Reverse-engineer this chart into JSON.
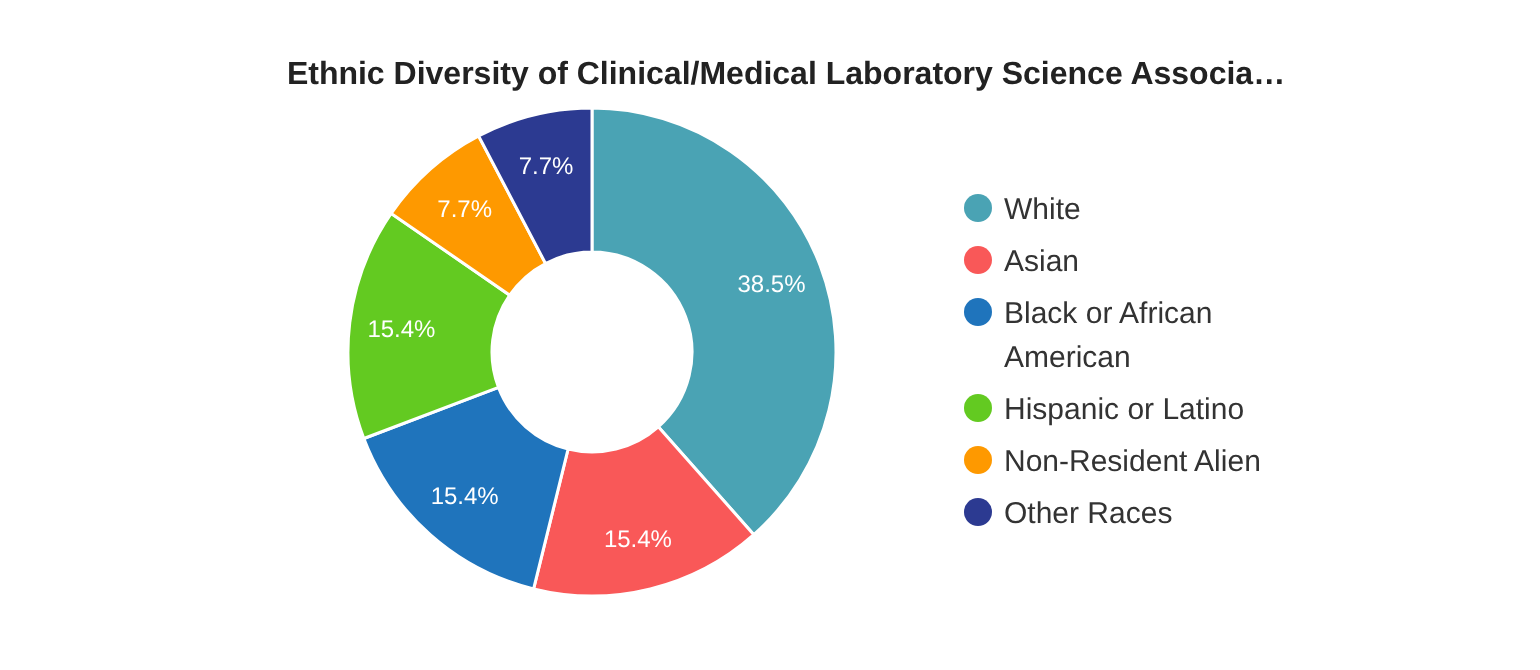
{
  "chart_data": {
    "type": "donut",
    "title": "Ethnic Diversity of Clinical/Medical Laboratory Science Associa…",
    "categories": [
      "White",
      "Asian",
      "Black or African American",
      "Hispanic or Latino",
      "Non-Resident Alien",
      "Other Races"
    ],
    "values": [
      38.5,
      15.4,
      15.4,
      15.4,
      7.7,
      7.7
    ],
    "value_labels": [
      "38.5%",
      "15.4%",
      "15.4%",
      "15.4%",
      "7.7%",
      "7.7%"
    ],
    "colors": [
      "#4aa3b4",
      "#f95858",
      "#1f74bc",
      "#63ca21",
      "#fe9900",
      "#2c3a91"
    ],
    "legend": "right"
  }
}
